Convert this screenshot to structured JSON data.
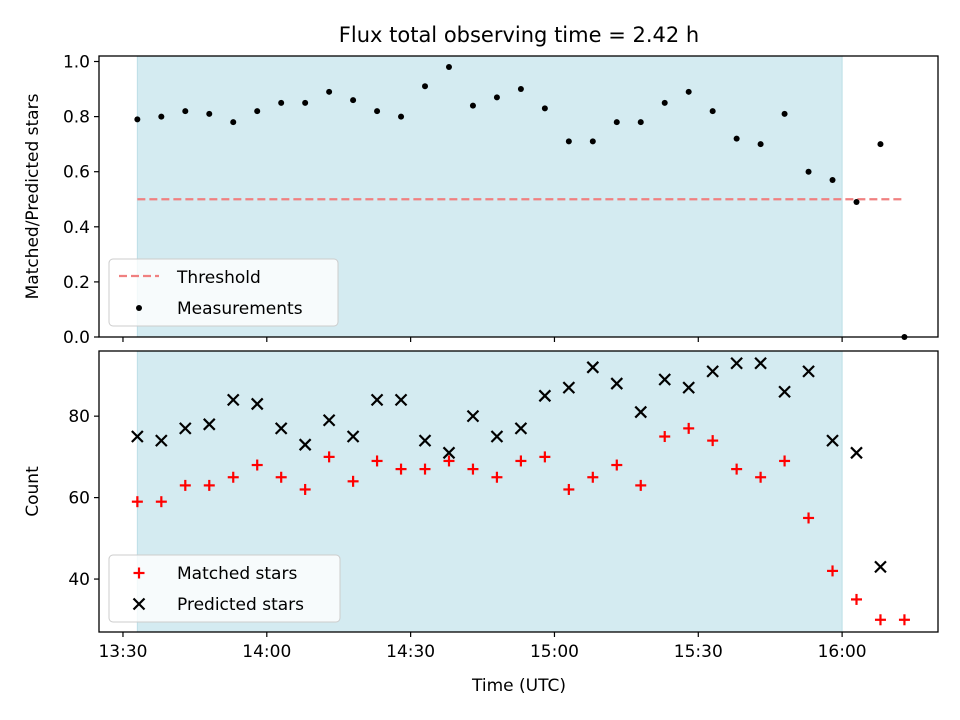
{
  "title": "Flux total observing time = 2.42 h",
  "xlabel": "Time (UTC)",
  "x_tick_labels": [
    "13:30",
    "14:00",
    "14:30",
    "15:00",
    "15:30",
    "16:00"
  ],
  "colors": {
    "shade": "#d4ebf1",
    "threshold": "#f08080",
    "measurements": "#000000",
    "matched": "#ff0000",
    "predicted": "#000000"
  },
  "chart_data": [
    {
      "type": "scatter",
      "ylabel": "Matched/Predicted stars",
      "xlim": [
        "13:25",
        "16:20"
      ],
      "ylim": [
        0,
        1.02
      ],
      "y_tick_labels": [
        "0.0",
        "0.2",
        "0.4",
        "0.6",
        "0.8",
        "1.0"
      ],
      "shaded_span": [
        "13:33",
        "16:00"
      ],
      "threshold": {
        "name": "Threshold",
        "value": 0.5,
        "x": [
          "13:33",
          "16:13"
        ]
      },
      "series": [
        {
          "name": "Measurements",
          "x": [
            "13:33",
            "13:38",
            "13:43",
            "13:48",
            "13:53",
            "13:58",
            "14:03",
            "14:08",
            "14:13",
            "14:18",
            "14:23",
            "14:28",
            "14:33",
            "14:38",
            "14:43",
            "14:48",
            "14:53",
            "14:58",
            "15:03",
            "15:08",
            "15:13",
            "15:18",
            "15:23",
            "15:28",
            "15:33",
            "15:38",
            "15:43",
            "15:48",
            "15:53",
            "15:58",
            "16:03",
            "16:08",
            "16:13"
          ],
          "values": [
            0.79,
            0.8,
            0.82,
            0.81,
            0.78,
            0.82,
            0.85,
            0.85,
            0.89,
            0.86,
            0.82,
            0.8,
            0.91,
            0.98,
            0.84,
            0.87,
            0.9,
            0.83,
            0.71,
            0.71,
            0.78,
            0.78,
            0.85,
            0.89,
            0.82,
            0.72,
            0.7,
            0.81,
            0.6,
            0.57,
            0.49,
            0.7,
            0.0
          ]
        }
      ],
      "legend": {
        "position": "lower-left",
        "entries": [
          "Threshold",
          "Measurements"
        ]
      }
    },
    {
      "type": "scatter",
      "ylabel": "Count",
      "xlim": [
        "13:25",
        "16:20"
      ],
      "ylim": [
        27,
        96
      ],
      "y_tick_labels": [
        "40",
        "60",
        "80"
      ],
      "shaded_span": [
        "13:33",
        "16:00"
      ],
      "series": [
        {
          "name": "Matched stars",
          "marker": "+",
          "x": [
            "13:33",
            "13:38",
            "13:43",
            "13:48",
            "13:53",
            "13:58",
            "14:03",
            "14:08",
            "14:13",
            "14:18",
            "14:23",
            "14:28",
            "14:33",
            "14:38",
            "14:43",
            "14:48",
            "14:53",
            "14:58",
            "15:03",
            "15:08",
            "15:13",
            "15:18",
            "15:23",
            "15:28",
            "15:33",
            "15:38",
            "15:43",
            "15:48",
            "15:53",
            "15:58",
            "16:03",
            "16:08",
            "16:13"
          ],
          "values": [
            59,
            59,
            63,
            63,
            65,
            68,
            65,
            62,
            70,
            64,
            69,
            67,
            67,
            69,
            67,
            65,
            69,
            70,
            62,
            65,
            68,
            63,
            75,
            77,
            74,
            67,
            65,
            69,
            55,
            42,
            35,
            30,
            30
          ]
        },
        {
          "name": "Predicted stars",
          "marker": "x",
          "x": [
            "13:33",
            "13:38",
            "13:43",
            "13:48",
            "13:53",
            "13:58",
            "14:03",
            "14:08",
            "14:13",
            "14:18",
            "14:23",
            "14:28",
            "14:33",
            "14:38",
            "14:43",
            "14:48",
            "14:53",
            "14:58",
            "15:03",
            "15:08",
            "15:13",
            "15:18",
            "15:23",
            "15:28",
            "15:33",
            "15:38",
            "15:43",
            "15:48",
            "15:53",
            "15:58",
            "16:03",
            "16:08"
          ],
          "values": [
            75,
            74,
            77,
            78,
            84,
            83,
            77,
            73,
            79,
            75,
            84,
            84,
            74,
            71,
            80,
            75,
            77,
            85,
            87,
            92,
            88,
            81,
            89,
            87,
            91,
            93,
            93,
            86,
            91,
            74,
            71,
            43
          ]
        }
      ],
      "legend": {
        "position": "lower-left",
        "entries": [
          "Matched stars",
          "Predicted stars"
        ]
      }
    }
  ]
}
